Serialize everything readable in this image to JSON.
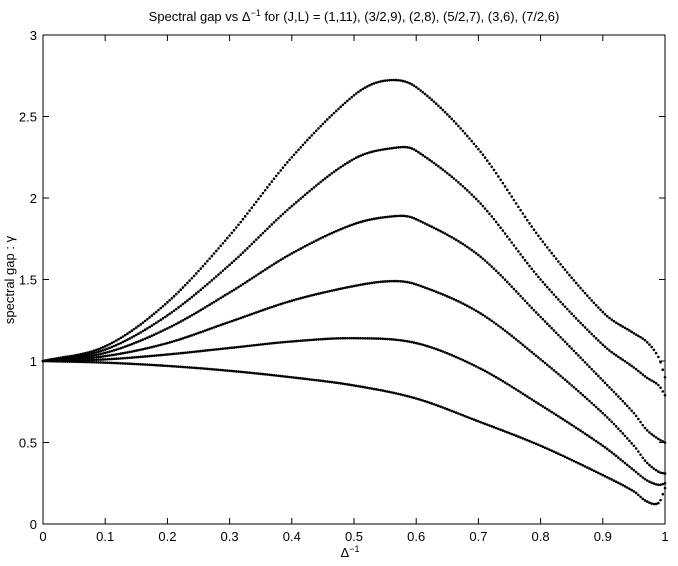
{
  "chart_data": {
    "type": "scatter",
    "title_prefix": "Spectral gap vs Δ",
    "title_sup": "−1",
    "title_suffix": " for (J,L) = (1,11), (3/2,9), (2,8), (5/2,7), (3,6), (7/2,6)",
    "xlabel": "Δ",
    "xlabel_sup": "−1",
    "ylabel": "spectral gap : γ",
    "xlim": [
      0,
      1
    ],
    "ylim": [
      0,
      3
    ],
    "x_ticks": [
      "0",
      "0.1",
      "0.2",
      "0.3",
      "0.4",
      "0.5",
      "0.6",
      "0.7",
      "0.8",
      "0.9",
      "1"
    ],
    "y_ticks": [
      "0",
      "0.5",
      "1",
      "1.5",
      "2",
      "2.5",
      "3"
    ],
    "grid": false,
    "marker_color": "#000000",
    "series": [
      {
        "x": [
          0,
          0.1,
          0.2,
          0.3,
          0.4,
          0.5,
          0.55,
          0.6,
          0.7,
          0.8,
          0.9,
          0.95,
          0.97,
          0.99,
          1.0
        ],
        "y": [
          1.0,
          1.09,
          1.36,
          1.77,
          2.25,
          2.63,
          2.72,
          2.68,
          2.3,
          1.75,
          1.3,
          1.17,
          1.12,
          1.02,
          0.9
        ]
      },
      {
        "x": [
          0,
          0.1,
          0.2,
          0.3,
          0.4,
          0.5,
          0.57,
          0.6,
          0.7,
          0.8,
          0.9,
          0.95,
          0.97,
          0.99,
          1.0
        ],
        "y": [
          1.0,
          1.07,
          1.28,
          1.59,
          1.95,
          2.24,
          2.31,
          2.29,
          1.98,
          1.5,
          1.1,
          0.96,
          0.9,
          0.85,
          0.79
        ]
      },
      {
        "x": [
          0,
          0.1,
          0.2,
          0.3,
          0.4,
          0.5,
          0.57,
          0.6,
          0.7,
          0.8,
          0.9,
          0.95,
          0.97,
          0.99,
          1.0
        ],
        "y": [
          1.0,
          1.05,
          1.2,
          1.42,
          1.66,
          1.84,
          1.89,
          1.87,
          1.65,
          1.27,
          0.88,
          0.68,
          0.58,
          0.52,
          0.5
        ]
      },
      {
        "x": [
          0,
          0.1,
          0.2,
          0.3,
          0.4,
          0.5,
          0.56,
          0.6,
          0.7,
          0.8,
          0.9,
          0.95,
          0.97,
          0.99,
          1.0
        ],
        "y": [
          1.0,
          1.03,
          1.11,
          1.24,
          1.37,
          1.46,
          1.49,
          1.47,
          1.3,
          1.01,
          0.68,
          0.48,
          0.38,
          0.32,
          0.31
        ]
      },
      {
        "x": [
          0,
          0.1,
          0.2,
          0.3,
          0.4,
          0.5,
          0.6,
          0.7,
          0.8,
          0.9,
          0.95,
          0.97,
          0.99,
          1.0
        ],
        "y": [
          1.0,
          1.01,
          1.04,
          1.08,
          1.12,
          1.14,
          1.11,
          0.96,
          0.73,
          0.48,
          0.33,
          0.27,
          0.24,
          0.25
        ]
      },
      {
        "x": [
          0,
          0.1,
          0.2,
          0.3,
          0.4,
          0.5,
          0.6,
          0.7,
          0.8,
          0.9,
          0.95,
          0.97,
          0.99,
          1.0
        ],
        "y": [
          1.0,
          0.99,
          0.97,
          0.94,
          0.9,
          0.85,
          0.77,
          0.63,
          0.48,
          0.3,
          0.2,
          0.14,
          0.13,
          0.22
        ]
      }
    ]
  }
}
